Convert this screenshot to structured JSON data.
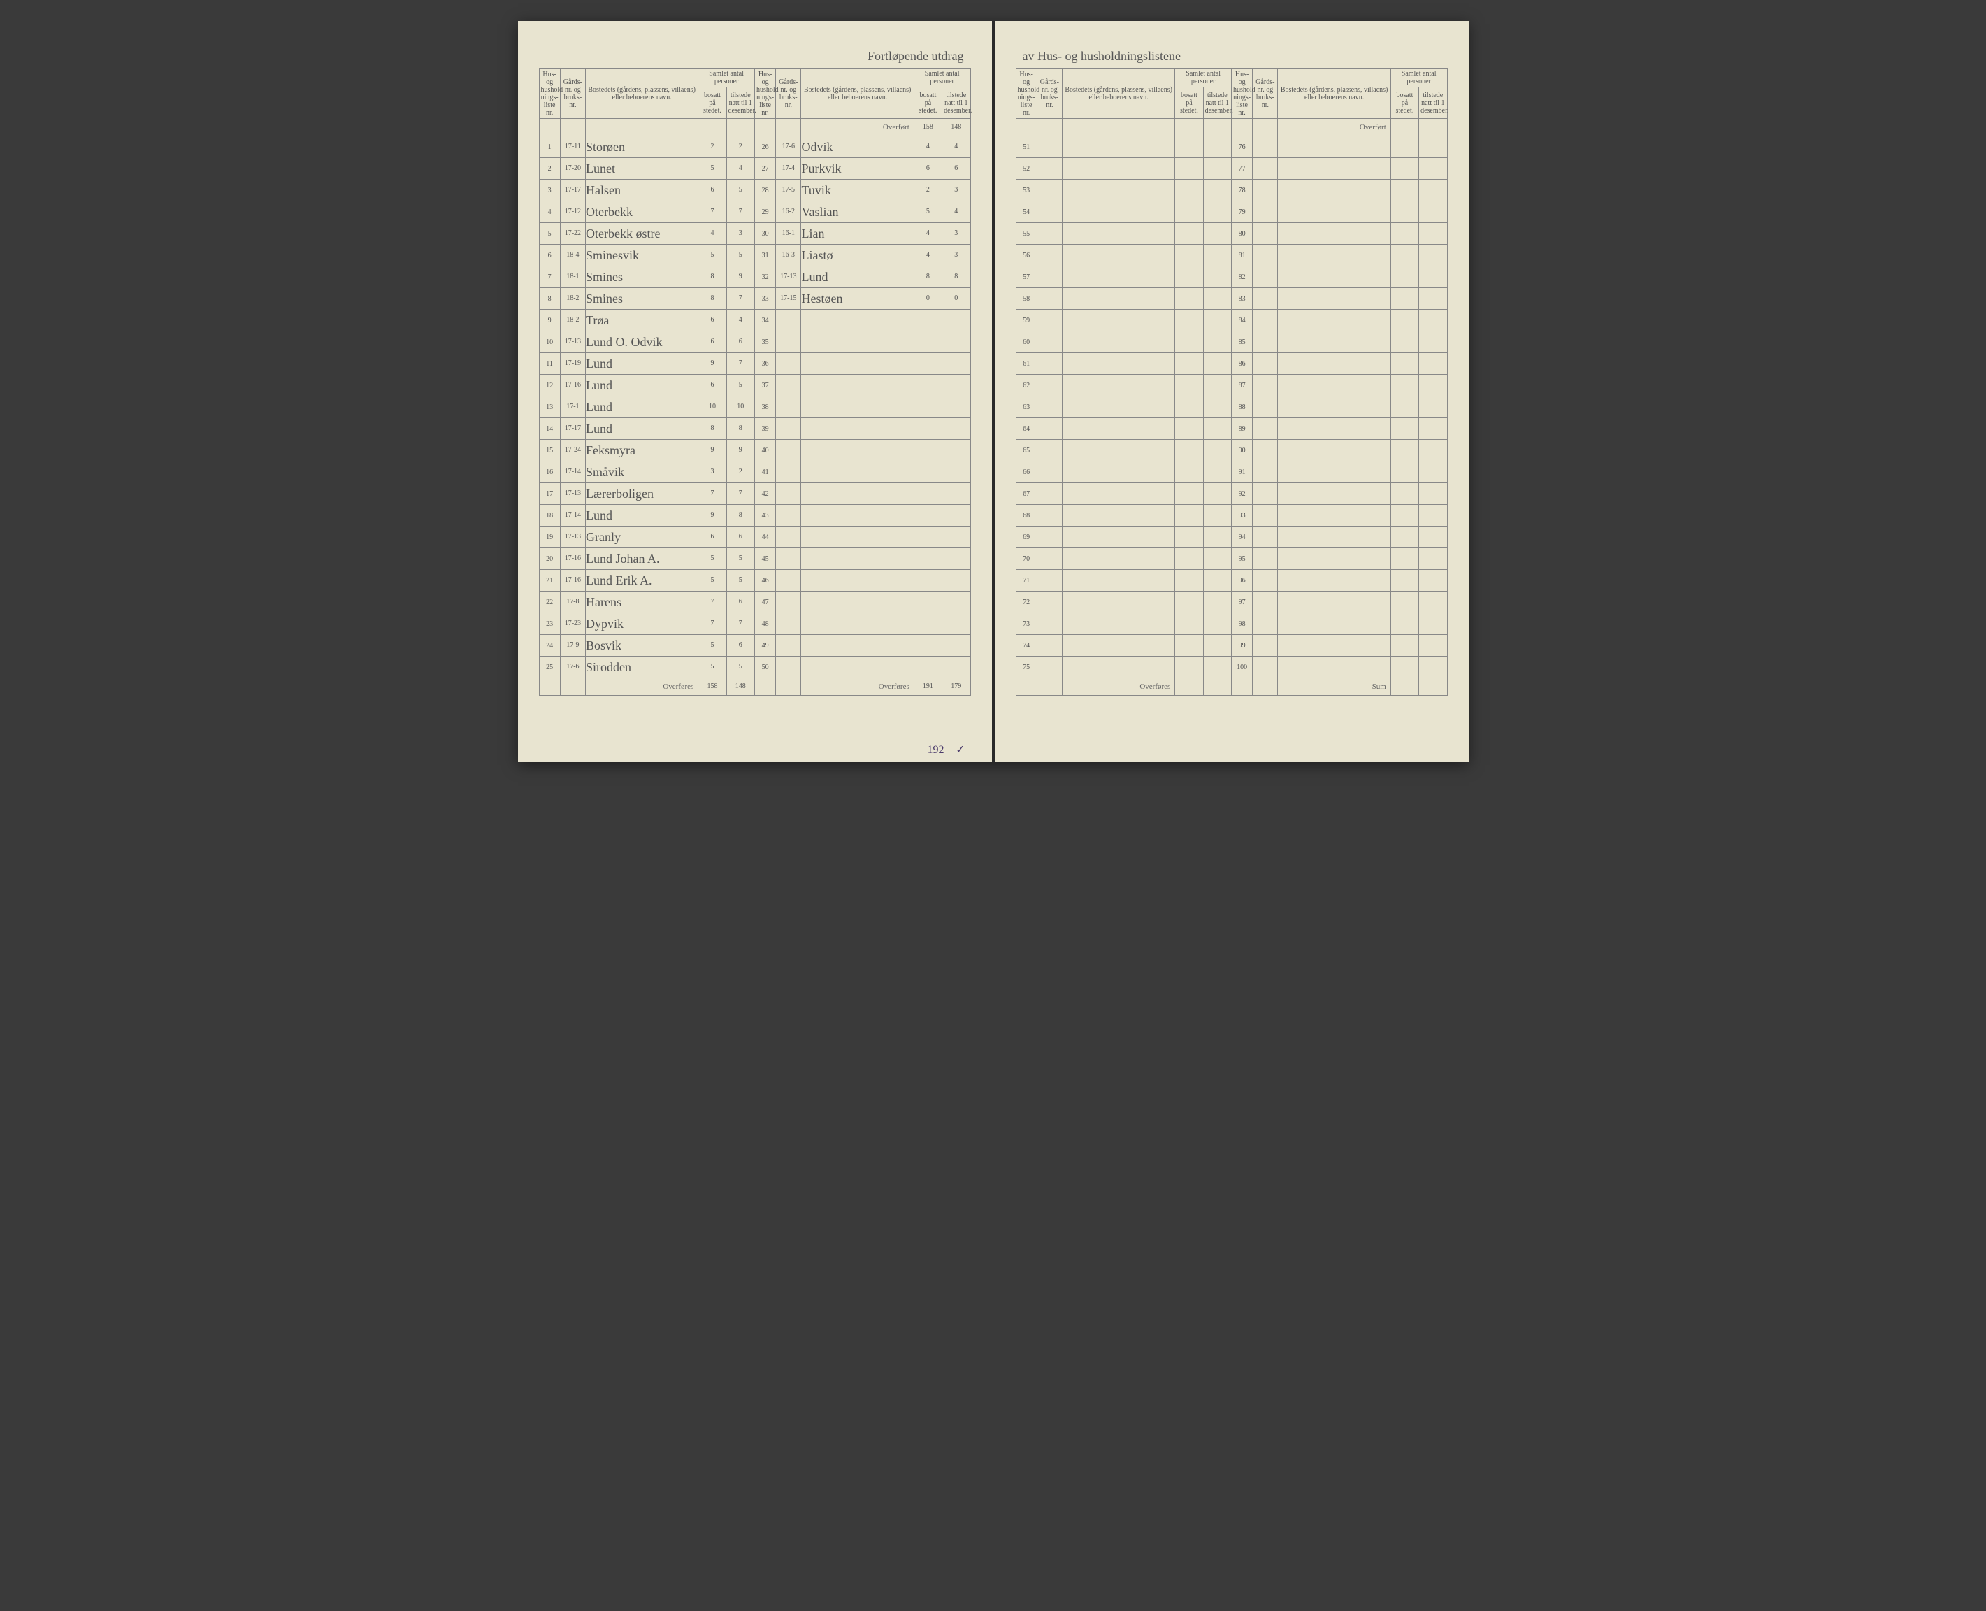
{
  "document": {
    "title_left": "Fortløpende utdrag",
    "title_right": "av Hus- og husholdningslistene",
    "background_color": "#e8e4d0",
    "ink_color": "#4a3a6a",
    "print_color": "#666666",
    "rule_color": "#888888"
  },
  "headers": {
    "col_rownum": "Hus- og hushold-nings-liste nr.",
    "col_gard": "Gårds-nr. og bruks-nr.",
    "col_name": "Bostedets (gårdens, plassens, villaens) eller beboerens navn.",
    "group_persons": "Samlet antal personer",
    "col_bosatt": "bosatt på stedet.",
    "col_tilstede": "tilstede natt til 1 desember.",
    "overfort": "Overført",
    "overfores": "Overføres",
    "sum": "Sum"
  },
  "page1_col1": {
    "rows": [
      {
        "n": "1",
        "g": "17-11",
        "name": "Storøen",
        "b": "2",
        "t": "2"
      },
      {
        "n": "2",
        "g": "17-20",
        "name": "Lunet",
        "b": "5",
        "t": "4"
      },
      {
        "n": "3",
        "g": "17-17",
        "name": "Halsen",
        "b": "6",
        "t": "5"
      },
      {
        "n": "4",
        "g": "17-12",
        "name": "Oterbekk",
        "b": "7",
        "t": "7"
      },
      {
        "n": "5",
        "g": "17-22",
        "name": "Oterbekk østre",
        "b": "4",
        "t": "3"
      },
      {
        "n": "6",
        "g": "18-4",
        "name": "Sminesvik",
        "b": "5",
        "t": "5"
      },
      {
        "n": "7",
        "g": "18-1",
        "name": "Smines",
        "b": "8",
        "t": "9"
      },
      {
        "n": "8",
        "g": "18-2",
        "name": "Smines",
        "b": "8",
        "t": "7"
      },
      {
        "n": "9",
        "g": "18-2",
        "name": "Trøa",
        "b": "6",
        "t": "4"
      },
      {
        "n": "10",
        "g": "17-13",
        "name": "Lund O. Odvik",
        "b": "6",
        "t": "6"
      },
      {
        "n": "11",
        "g": "17-19",
        "name": "Lund",
        "b": "9",
        "t": "7"
      },
      {
        "n": "12",
        "g": "17-16",
        "name": "Lund",
        "b": "6",
        "t": "5"
      },
      {
        "n": "13",
        "g": "17-1",
        "name": "Lund",
        "b": "10",
        "t": "10"
      },
      {
        "n": "14",
        "g": "17-17",
        "name": "Lund",
        "b": "8",
        "t": "8"
      },
      {
        "n": "15",
        "g": "17-24",
        "name": "Feksmyra",
        "b": "9",
        "t": "9"
      },
      {
        "n": "16",
        "g": "17-14",
        "name": "Småvik",
        "b": "3",
        "t": "2"
      },
      {
        "n": "17",
        "g": "17-13",
        "name": "Lærerboligen",
        "b": "7",
        "t": "7"
      },
      {
        "n": "18",
        "g": "17-14",
        "name": "Lund",
        "b": "9",
        "t": "8"
      },
      {
        "n": "19",
        "g": "17-13",
        "name": "Granly",
        "b": "6",
        "t": "6"
      },
      {
        "n": "20",
        "g": "17-16",
        "name": "Lund Johan A.",
        "b": "5",
        "t": "5"
      },
      {
        "n": "21",
        "g": "17-16",
        "name": "Lund Erik A.",
        "b": "5",
        "t": "5"
      },
      {
        "n": "22",
        "g": "17-8",
        "name": "Harens",
        "b": "7",
        "t": "6"
      },
      {
        "n": "23",
        "g": "17-23",
        "name": "Dypvik",
        "b": "7",
        "t": "7"
      },
      {
        "n": "24",
        "g": "17-9",
        "name": "Bosvik",
        "b": "5",
        "t": "6"
      },
      {
        "n": "25",
        "g": "17-6",
        "name": "Sirodden",
        "b": "5",
        "t": "5"
      }
    ],
    "overfores_b": "158",
    "overfores_t": "148"
  },
  "page1_col2": {
    "overfort_b": "158",
    "overfort_t": "148",
    "rows": [
      {
        "n": "26",
        "g": "17-6",
        "name": "Odvik",
        "b": "4",
        "t": "4"
      },
      {
        "n": "27",
        "g": "17-4",
        "name": "Purkvik",
        "b": "6",
        "t": "6"
      },
      {
        "n": "28",
        "g": "17-5",
        "name": "Tuvik",
        "b": "2",
        "t": "3"
      },
      {
        "n": "29",
        "g": "16-2",
        "name": "Vaslian",
        "b": "5",
        "t": "4"
      },
      {
        "n": "30",
        "g": "16-1",
        "name": "Lian",
        "b": "4",
        "t": "3"
      },
      {
        "n": "31",
        "g": "16-3",
        "name": "Liastø",
        "b": "4",
        "t": "3"
      },
      {
        "n": "32",
        "g": "17-13",
        "name": "Lund",
        "b": "8",
        "t": "8"
      },
      {
        "n": "33",
        "g": "17-15",
        "name": "Hestøen",
        "b": "0",
        "t": "0"
      },
      {
        "n": "34",
        "g": "",
        "name": "",
        "b": "",
        "t": ""
      },
      {
        "n": "35",
        "g": "",
        "name": "",
        "b": "",
        "t": ""
      },
      {
        "n": "36",
        "g": "",
        "name": "",
        "b": "",
        "t": ""
      },
      {
        "n": "37",
        "g": "",
        "name": "",
        "b": "",
        "t": ""
      },
      {
        "n": "38",
        "g": "",
        "name": "",
        "b": "",
        "t": ""
      },
      {
        "n": "39",
        "g": "",
        "name": "",
        "b": "",
        "t": ""
      },
      {
        "n": "40",
        "g": "",
        "name": "",
        "b": "",
        "t": ""
      },
      {
        "n": "41",
        "g": "",
        "name": "",
        "b": "",
        "t": ""
      },
      {
        "n": "42",
        "g": "",
        "name": "",
        "b": "",
        "t": ""
      },
      {
        "n": "43",
        "g": "",
        "name": "",
        "b": "",
        "t": ""
      },
      {
        "n": "44",
        "g": "",
        "name": "",
        "b": "",
        "t": ""
      },
      {
        "n": "45",
        "g": "",
        "name": "",
        "b": "",
        "t": ""
      },
      {
        "n": "46",
        "g": "",
        "name": "",
        "b": "",
        "t": ""
      },
      {
        "n": "47",
        "g": "",
        "name": "",
        "b": "",
        "t": ""
      },
      {
        "n": "48",
        "g": "",
        "name": "",
        "b": "",
        "t": ""
      },
      {
        "n": "49",
        "g": "",
        "name": "",
        "b": "",
        "t": ""
      },
      {
        "n": "50",
        "g": "",
        "name": "",
        "b": "",
        "t": ""
      }
    ],
    "overfores_b": "191",
    "overfores_t": "179",
    "extra_b": "192",
    "extra_t": "✓"
  },
  "page2_col1": {
    "rows": [
      {
        "n": "51"
      },
      {
        "n": "52"
      },
      {
        "n": "53"
      },
      {
        "n": "54"
      },
      {
        "n": "55"
      },
      {
        "n": "56"
      },
      {
        "n": "57"
      },
      {
        "n": "58"
      },
      {
        "n": "59"
      },
      {
        "n": "60"
      },
      {
        "n": "61"
      },
      {
        "n": "62"
      },
      {
        "n": "63"
      },
      {
        "n": "64"
      },
      {
        "n": "65"
      },
      {
        "n": "66"
      },
      {
        "n": "67"
      },
      {
        "n": "68"
      },
      {
        "n": "69"
      },
      {
        "n": "70"
      },
      {
        "n": "71"
      },
      {
        "n": "72"
      },
      {
        "n": "73"
      },
      {
        "n": "74"
      },
      {
        "n": "75"
      }
    ]
  },
  "page2_col2": {
    "rows": [
      {
        "n": "76"
      },
      {
        "n": "77"
      },
      {
        "n": "78"
      },
      {
        "n": "79"
      },
      {
        "n": "80"
      },
      {
        "n": "81"
      },
      {
        "n": "82"
      },
      {
        "n": "83"
      },
      {
        "n": "84"
      },
      {
        "n": "85"
      },
      {
        "n": "86"
      },
      {
        "n": "87"
      },
      {
        "n": "88"
      },
      {
        "n": "89"
      },
      {
        "n": "90"
      },
      {
        "n": "91"
      },
      {
        "n": "92"
      },
      {
        "n": "93"
      },
      {
        "n": "94"
      },
      {
        "n": "95"
      },
      {
        "n": "96"
      },
      {
        "n": "97"
      },
      {
        "n": "98"
      },
      {
        "n": "99"
      },
      {
        "n": "100"
      }
    ]
  }
}
